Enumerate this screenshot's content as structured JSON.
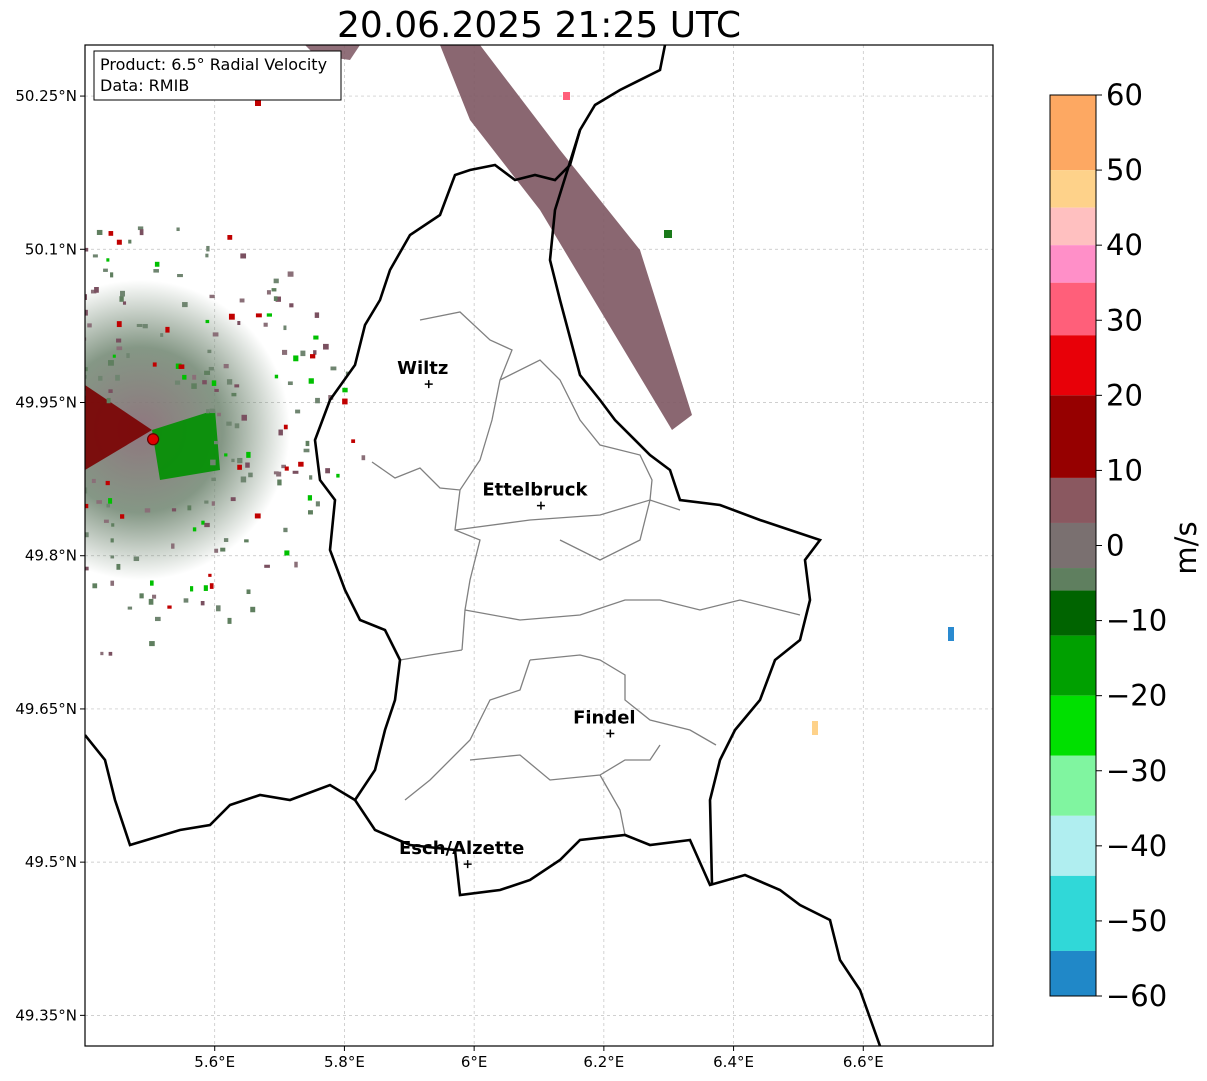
{
  "title": "20.06.2025 21:25 UTC",
  "info_box": {
    "product": "Product: 6.5° Radial Velocity",
    "data_source": "Data: RMIB"
  },
  "map": {
    "lon_range": [
      5.4,
      6.8
    ],
    "lat_range": [
      49.32,
      50.3
    ],
    "x_ticks": [
      {
        "value": 5.6,
        "label": "5.6°E"
      },
      {
        "value": 5.8,
        "label": "5.8°E"
      },
      {
        "value": 6.0,
        "label": "6°E"
      },
      {
        "value": 6.2,
        "label": "6.2°E"
      },
      {
        "value": 6.4,
        "label": "6.4°E"
      },
      {
        "value": 6.6,
        "label": "6.6°E"
      }
    ],
    "y_ticks": [
      {
        "value": 50.25,
        "label": "50.25°N"
      },
      {
        "value": 50.1,
        "label": "50.1°N"
      },
      {
        "value": 49.95,
        "label": "49.95°N"
      },
      {
        "value": 49.8,
        "label": "49.8°N"
      },
      {
        "value": 49.65,
        "label": "49.65°N"
      },
      {
        "value": 49.5,
        "label": "49.5°N"
      },
      {
        "value": 49.35,
        "label": "49.35°N"
      }
    ],
    "grid": true,
    "cities": [
      {
        "name": "Wiltz",
        "lon": 5.93,
        "lat": 49.968
      },
      {
        "name": "Ettelbruck",
        "lon": 6.103,
        "lat": 49.849
      },
      {
        "name": "Findel",
        "lon": 6.21,
        "lat": 49.626
      },
      {
        "name": "Esch/Alzette",
        "lon": 5.99,
        "lat": 49.498
      }
    ],
    "radar_site": {
      "lon": 5.505,
      "lat": 49.914,
      "color": "#e00000"
    },
    "border_color": "#000000",
    "canton_color": "#808080"
  },
  "colorbar": {
    "unit": "m/s",
    "range": [
      -60,
      60
    ],
    "tick_labels": [
      "60",
      "50",
      "40",
      "30",
      "20",
      "10",
      "0",
      "−10",
      "−20",
      "−30",
      "−40",
      "−50",
      "−60"
    ],
    "stops": [
      {
        "from": 50,
        "to": 60,
        "color": "#fda862"
      },
      {
        "from": 45,
        "to": 50,
        "color": "#fed28a"
      },
      {
        "from": 40,
        "to": 45,
        "color": "#ffc0c0"
      },
      {
        "from": 35,
        "to": 40,
        "color": "#ff8fc8"
      },
      {
        "from": 28,
        "to": 35,
        "color": "#ff5f7a"
      },
      {
        "from": 20,
        "to": 28,
        "color": "#e80008"
      },
      {
        "from": 9,
        "to": 20,
        "color": "#960000"
      },
      {
        "from": 3,
        "to": 9,
        "color": "#8a5860"
      },
      {
        "from": -3,
        "to": 3,
        "color": "#7a7070"
      },
      {
        "from": -6,
        "to": -3,
        "color": "#5f7f5f"
      },
      {
        "from": -12,
        "to": -6,
        "color": "#006400"
      },
      {
        "from": -20,
        "to": -12,
        "color": "#00a000"
      },
      {
        "from": -28,
        "to": -20,
        "color": "#00e000"
      },
      {
        "from": -36,
        "to": -28,
        "color": "#80f5a0"
      },
      {
        "from": -44,
        "to": -36,
        "color": "#b0eef0"
      },
      {
        "from": -54,
        "to": -44,
        "color": "#30d8d8"
      },
      {
        "from": -60,
        "to": -54,
        "color": "#2088c8"
      }
    ]
  }
}
